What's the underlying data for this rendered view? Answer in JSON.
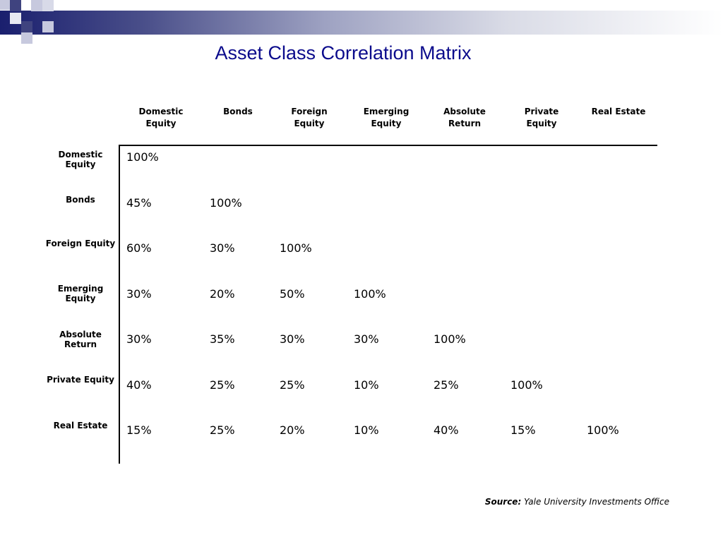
{
  "title": "Asset Class Correlation Matrix",
  "column_headers": [
    "Domestic Equity",
    "Bonds",
    "Foreign Equity",
    "Emerging Equity",
    "Absolute Return",
    "Private Equity",
    "Real Estate"
  ],
  "row_headers": [
    "Domestic Equity",
    "Bonds",
    "Foreign Equity",
    "Emerging Equity",
    "Absolute Return",
    "Private Equity",
    "Real Estate"
  ],
  "rows": [
    [
      "100%"
    ],
    [
      "45%",
      "100%"
    ],
    [
      "60%",
      "30%",
      "100%"
    ],
    [
      "30%",
      "20%",
      "50%",
      "100%"
    ],
    [
      "30%",
      "35%",
      "30%",
      "30%",
      "100%"
    ],
    [
      "40%",
      "25%",
      "25%",
      "10%",
      "25%",
      "100%"
    ],
    [
      "15%",
      "25%",
      "20%",
      "10%",
      "40%",
      "15%",
      "100%"
    ]
  ],
  "source": {
    "label": "Source:",
    "text": "Yale University Investments Office"
  },
  "colors": {
    "title": "#0b0b8c",
    "banner_dark": "#1a1f6e",
    "banner_square": "#3f437f",
    "banner_square_light": "#c7c9de"
  }
}
